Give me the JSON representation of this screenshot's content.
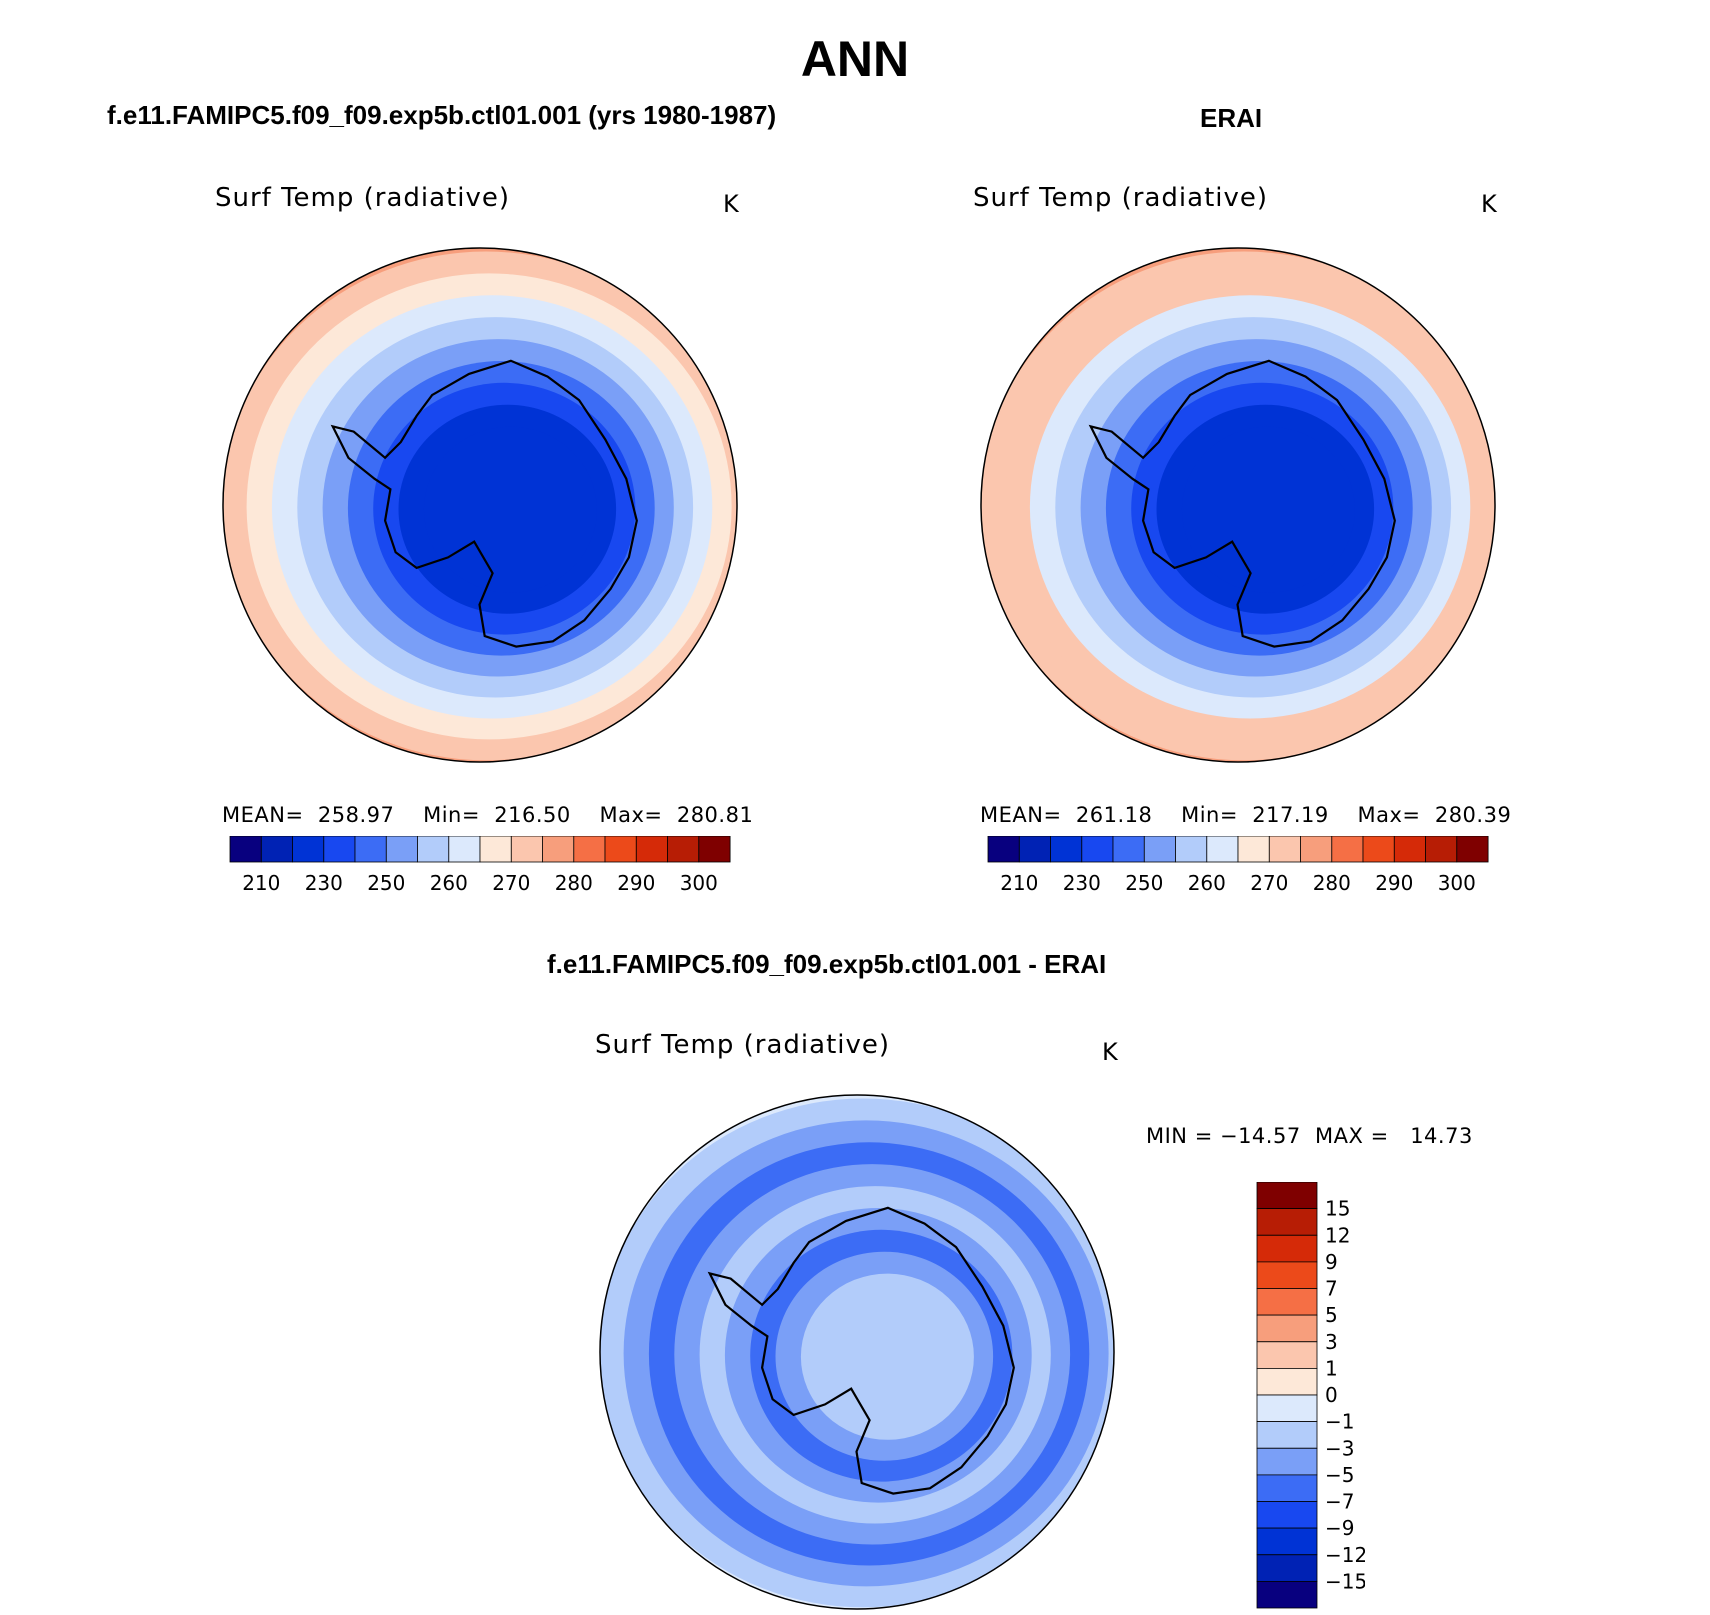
{
  "page": {
    "title": "ANN",
    "variable": "Surf Temp (radiative)",
    "units": "K"
  },
  "colors": {
    "abs_scale": [
      "#08007f",
      "#0022b4",
      "#0033d5",
      "#1848f0",
      "#3c6cf5",
      "#7a9ff7",
      "#b2ccfa",
      "#dce9fc",
      "#fde8d8",
      "#fbc6ae",
      "#f79e7c",
      "#f56f45",
      "#ec4a1a",
      "#d52a08",
      "#b71d05",
      "#7f0000"
    ],
    "diff_scale": [
      "#08007f",
      "#0022b4",
      "#0033d5",
      "#1848f0",
      "#3c6cf5",
      "#7a9ff7",
      "#b2ccfa",
      "#dce9fc",
      "#fde8d8",
      "#fbc6ae",
      "#f79e7c",
      "#f56f45",
      "#ec4a1a",
      "#d52a08",
      "#b71d05",
      "#7f0000"
    ]
  },
  "chart_data": [
    {
      "type": "heatmap",
      "projection": "south-polar-stereographic",
      "title": "f.e11.FAMIPC5.f09_f09.exp5b.ctl01.001 (yrs 1980-1987)",
      "variable": "Surf Temp (radiative)",
      "units": "K",
      "stats": {
        "mean": "258.97",
        "min": "216.50",
        "max": "280.81"
      },
      "stats_text": "MEAN=  258.97    Min=  216.50    Max=  280.81",
      "ring_levels": [
        278,
        275,
        272,
        268,
        262,
        257,
        250,
        242,
        235,
        228,
        220
      ],
      "colorbar_ticks": [
        "210",
        "230",
        "250",
        "260",
        "270",
        "280",
        "290",
        "300"
      ]
    },
    {
      "type": "heatmap",
      "projection": "south-polar-stereographic",
      "title": "ERAI",
      "variable": "Surf Temp (radiative)",
      "units": "K",
      "stats": {
        "mean": "261.18",
        "min": "217.19",
        "max": "280.39"
      },
      "stats_text": "MEAN=  261.18    Min=  217.19    Max=  280.39",
      "ring_levels": [
        278,
        276,
        273,
        270,
        264,
        258,
        250,
        243,
        236,
        229,
        222
      ],
      "colorbar_ticks": [
        "210",
        "230",
        "250",
        "260",
        "270",
        "280",
        "290",
        "300"
      ]
    },
    {
      "type": "heatmap",
      "projection": "south-polar-stereographic",
      "title": "f.e11.FAMIPC5.f09_f09.exp5b.ctl01.001 - ERAI",
      "variable": "Surf Temp (radiative)",
      "units": "K",
      "stats": {
        "min": "−14.57",
        "max": "14.73"
      },
      "stats_text": "MIN = −14.57  MAX =   14.73",
      "ring_levels": [
        0.5,
        -0.5,
        -2,
        -4,
        -6,
        -4,
        -3,
        -5,
        -6,
        -4,
        -2
      ],
      "colorbar_ticks": [
        "15",
        "12",
        "9",
        "7",
        "5",
        "3",
        "1",
        "0",
        "−1",
        "−3",
        "−5",
        "−7",
        "−9",
        "−12",
        "−15"
      ]
    }
  ]
}
